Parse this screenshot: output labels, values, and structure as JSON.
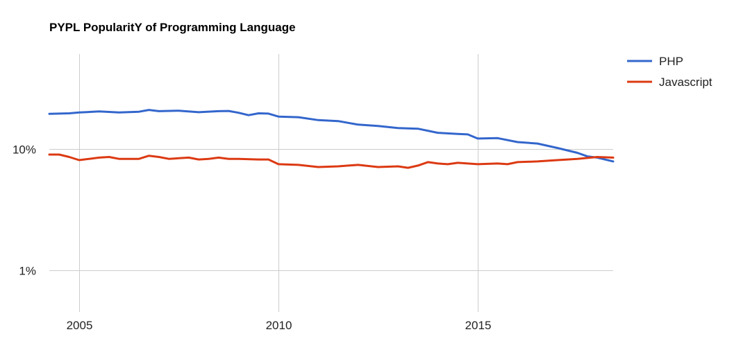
{
  "chart_data": {
    "type": "line",
    "title": "PYPL PopularitY of Programming Language",
    "xlabel": "",
    "ylabel": "",
    "x_scale": "time",
    "xlim": [
      2004.25,
      2018.4
    ],
    "x_ticks": [
      {
        "value": 2005,
        "label": "2005"
      },
      {
        "value": 2010,
        "label": "2010"
      },
      {
        "value": 2015,
        "label": "2015"
      }
    ],
    "y_scale": "log",
    "ylim": [
      0.5,
      50
    ],
    "y_ticks": [
      {
        "value": 1,
        "label": "1%"
      },
      {
        "value": 10,
        "label": "10%"
      }
    ],
    "grid": true,
    "legend": {
      "position": "right"
    },
    "series": [
      {
        "name": "PHP",
        "color": "#3366cc",
        "points": [
          [
            2004.25,
            19.5
          ],
          [
            2004.75,
            19.7
          ],
          [
            2005.0,
            20.0
          ],
          [
            2005.5,
            20.4
          ],
          [
            2006.0,
            20.0
          ],
          [
            2006.5,
            20.3
          ],
          [
            2006.75,
            21.0
          ],
          [
            2007.0,
            20.5
          ],
          [
            2007.5,
            20.7
          ],
          [
            2008.0,
            20.1
          ],
          [
            2008.5,
            20.5
          ],
          [
            2008.75,
            20.6
          ],
          [
            2009.0,
            19.9
          ],
          [
            2009.25,
            19.0
          ],
          [
            2009.5,
            19.7
          ],
          [
            2009.75,
            19.6
          ],
          [
            2010.0,
            18.5
          ],
          [
            2010.5,
            18.3
          ],
          [
            2011.0,
            17.3
          ],
          [
            2011.5,
            17.0
          ],
          [
            2012.0,
            15.9
          ],
          [
            2012.5,
            15.5
          ],
          [
            2013.0,
            14.9
          ],
          [
            2013.5,
            14.7
          ],
          [
            2014.0,
            13.6
          ],
          [
            2014.5,
            13.3
          ],
          [
            2014.75,
            13.2
          ],
          [
            2015.0,
            12.2
          ],
          [
            2015.5,
            12.3
          ],
          [
            2016.0,
            11.4
          ],
          [
            2016.5,
            11.1
          ],
          [
            2017.0,
            10.2
          ],
          [
            2017.5,
            9.3
          ],
          [
            2017.75,
            8.7
          ],
          [
            2018.0,
            8.5
          ],
          [
            2018.4,
            7.9
          ]
        ]
      },
      {
        "name": "Javascript",
        "color": "#dc3912",
        "points": [
          [
            2004.25,
            9.0
          ],
          [
            2004.5,
            9.0
          ],
          [
            2004.75,
            8.6
          ],
          [
            2005.0,
            8.1
          ],
          [
            2005.25,
            8.3
          ],
          [
            2005.5,
            8.5
          ],
          [
            2005.75,
            8.6
          ],
          [
            2006.0,
            8.3
          ],
          [
            2006.5,
            8.3
          ],
          [
            2006.75,
            8.8
          ],
          [
            2007.0,
            8.6
          ],
          [
            2007.25,
            8.3
          ],
          [
            2007.5,
            8.4
          ],
          [
            2007.75,
            8.5
          ],
          [
            2008.0,
            8.2
          ],
          [
            2008.25,
            8.3
          ],
          [
            2008.5,
            8.5
          ],
          [
            2008.75,
            8.3
          ],
          [
            2009.0,
            8.3
          ],
          [
            2009.5,
            8.2
          ],
          [
            2009.75,
            8.2
          ],
          [
            2010.0,
            7.5
          ],
          [
            2010.5,
            7.4
          ],
          [
            2011.0,
            7.1
          ],
          [
            2011.5,
            7.2
          ],
          [
            2011.75,
            7.3
          ],
          [
            2012.0,
            7.4
          ],
          [
            2012.5,
            7.1
          ],
          [
            2013.0,
            7.2
          ],
          [
            2013.25,
            7.0
          ],
          [
            2013.5,
            7.3
          ],
          [
            2013.75,
            7.8
          ],
          [
            2014.0,
            7.6
          ],
          [
            2014.25,
            7.5
          ],
          [
            2014.5,
            7.7
          ],
          [
            2015.0,
            7.5
          ],
          [
            2015.5,
            7.6
          ],
          [
            2015.75,
            7.5
          ],
          [
            2016.0,
            7.8
          ],
          [
            2016.5,
            7.9
          ],
          [
            2017.0,
            8.1
          ],
          [
            2017.5,
            8.3
          ],
          [
            2018.0,
            8.6
          ],
          [
            2018.4,
            8.5
          ]
        ]
      }
    ]
  }
}
